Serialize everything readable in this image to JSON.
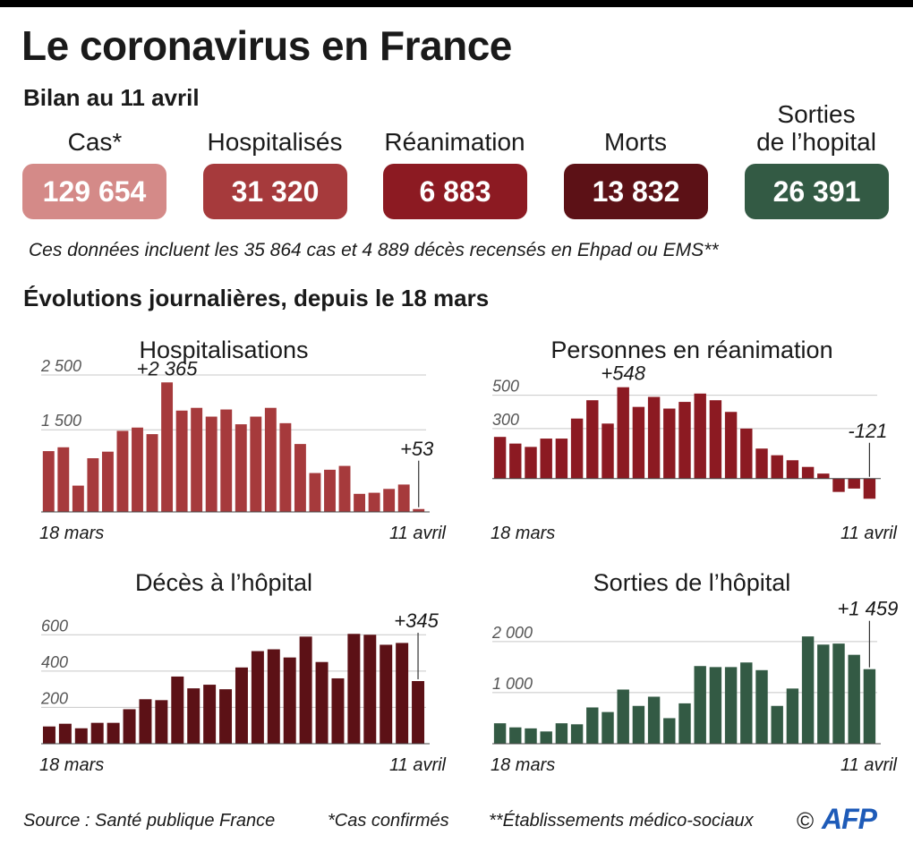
{
  "header": {
    "title": "Le coronavirus en France",
    "subtitle": "Bilan au 11 avril"
  },
  "kpis": [
    {
      "label_line1": "",
      "label_line2": "Cas*",
      "value": "129 654",
      "color": "#d48a88"
    },
    {
      "label_line1": "",
      "label_line2": "Hospitalisés",
      "value": "31 320",
      "color": "#a63a3c"
    },
    {
      "label_line1": "",
      "label_line2": "Réanimation",
      "value": "6 883",
      "color": "#8c1a22"
    },
    {
      "label_line1": "",
      "label_line2": "Morts",
      "value": "13 832",
      "color": "#5c1116"
    },
    {
      "label_line1": "Sorties",
      "label_line2": "de l’hopital",
      "value": "26 391",
      "color": "#335a44"
    }
  ],
  "note": "Ces données incluent les 35 864 cas et 4 889 décès recensés en Ehpad ou EMS**",
  "section_title": "Évolutions journalières, depuis le 18 mars",
  "chart_data": [
    {
      "type": "bar",
      "title": "Hospitalisations",
      "color": "#a63a3c",
      "x_start": "18 mars",
      "x_end": "11 avril",
      "ylim": [
        0,
        2500
      ],
      "yticks": [
        {
          "value": 2500,
          "label": "2 500"
        },
        {
          "value": 1500,
          "label": "1 500"
        }
      ],
      "values": [
        1110,
        1180,
        480,
        980,
        1100,
        1480,
        1540,
        1420,
        2365,
        1850,
        1900,
        1740,
        1870,
        1600,
        1740,
        1900,
        1620,
        1240,
        710,
        770,
        840,
        330,
        350,
        420,
        500,
        53
      ],
      "annotations": [
        {
          "index": 8,
          "label": "+2 365"
        },
        {
          "index": 25,
          "label": "+53",
          "leader": true
        }
      ]
    },
    {
      "type": "bar",
      "title": "Personnes en réanimation",
      "color": "#8c1a22",
      "x_start": "18 mars",
      "x_end": "11 avril",
      "ylim": [
        -200,
        600
      ],
      "yticks": [
        {
          "value": 500,
          "label": "500"
        },
        {
          "value": 300,
          "label": "300"
        }
      ],
      "values": [
        250,
        210,
        190,
        240,
        240,
        360,
        470,
        330,
        548,
        430,
        490,
        420,
        460,
        510,
        470,
        400,
        300,
        180,
        140,
        110,
        70,
        30,
        -80,
        -60,
        -121
      ],
      "annotations": [
        {
          "index": 8,
          "label": "+548"
        },
        {
          "index": 24,
          "label": "-121",
          "leader": true
        }
      ]
    },
    {
      "type": "bar",
      "title": "Décès à l’hôpital",
      "color": "#5c1116",
      "x_start": "18 mars",
      "x_end": "11 avril",
      "ylim": [
        0,
        700
      ],
      "yticks": [
        {
          "value": 600,
          "label": "600"
        },
        {
          "value": 400,
          "label": "400"
        },
        {
          "value": 200,
          "label": "200"
        }
      ],
      "values": [
        95,
        110,
        85,
        115,
        115,
        190,
        245,
        240,
        370,
        305,
        325,
        300,
        420,
        510,
        520,
        475,
        590,
        450,
        360,
        605,
        600,
        545,
        555,
        345
      ],
      "annotations": [
        {
          "index": 23,
          "label": "+345",
          "leader": true
        }
      ]
    },
    {
      "type": "bar",
      "title": "Sorties de l’hôpital",
      "color": "#335a44",
      "x_start": "18 mars",
      "x_end": "11 avril",
      "ylim": [
        0,
        2400
      ],
      "yticks": [
        {
          "value": 2000,
          "label": "2 000"
        },
        {
          "value": 1000,
          "label": "1 000"
        }
      ],
      "values": [
        400,
        320,
        300,
        240,
        400,
        380,
        710,
        620,
        1060,
        740,
        920,
        500,
        790,
        1520,
        1500,
        1500,
        1590,
        1440,
        740,
        1080,
        2100,
        1940,
        1960,
        1740,
        1459
      ],
      "annotations": [
        {
          "index": 24,
          "label": "+1 459",
          "leader": true
        }
      ]
    }
  ],
  "footer": {
    "source": "Source : Santé publique France",
    "note1": "*Cas confirmés",
    "note2": "**Établissements médico-sociaux",
    "copyright": "©",
    "brand": "AFP"
  }
}
